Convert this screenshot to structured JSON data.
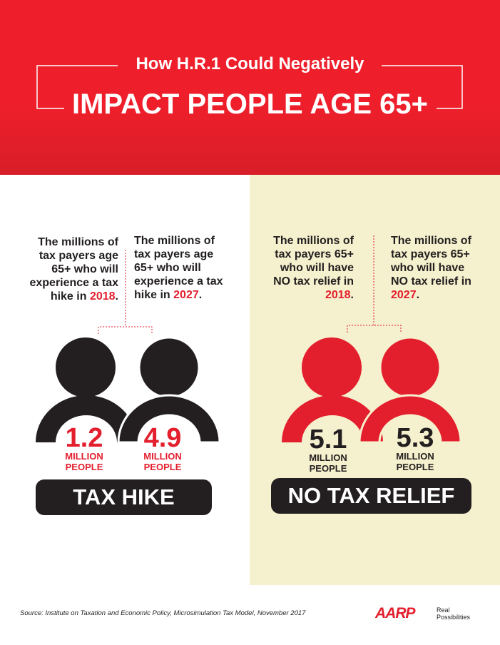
{
  "header": {
    "title": "How H.R.1 Could Negatively",
    "headline": "IMPACT PEOPLE AGE 65+"
  },
  "panels": [
    {
      "label": "TAX HIKE",
      "items": [
        {
          "description": "The millions of tax payers age 65+ who will experience a tax hike in",
          "year": "2018",
          "suffix": ".",
          "number": "1.2",
          "unit_line1": "MILLION",
          "unit_line2": "PEOPLE"
        },
        {
          "description": "The millions of tax payers age 65+ who will experience a tax hike in",
          "year": "2027",
          "suffix": ".",
          "number": "4.9",
          "unit_line1": "MILLION",
          "unit_line2": "PEOPLE"
        }
      ]
    },
    {
      "label": "NO TAX RELIEF",
      "items": [
        {
          "description": "The millions of tax payers 65+ who will have NO tax relief in",
          "year": "2018",
          "suffix": ".",
          "number": "5.1",
          "unit_line1": "MILLION",
          "unit_line2": "PEOPLE"
        },
        {
          "description": "The millions of tax payers 65+ who will have NO tax relief in",
          "year": "2027",
          "suffix": ".",
          "number": "5.3",
          "unit_line1": "MILLION",
          "unit_line2": "PEOPLE"
        }
      ]
    }
  ],
  "footer": {
    "source": "Source: Institute on Taxation and Economic Policy, Microsimulation Tax Model, November 2017",
    "logo": "AARP",
    "tagline_line1": "Real",
    "tagline_line2": "Possibilities"
  }
}
